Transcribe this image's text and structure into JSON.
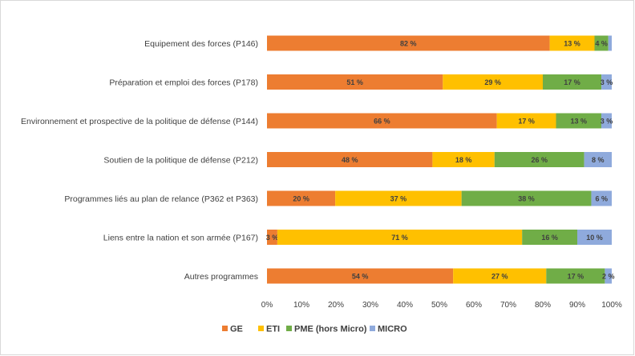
{
  "chart_data": {
    "type": "bar",
    "orientation": "horizontal",
    "stacked": "percent",
    "categories": [
      "Equipement des forces (P146)",
      "Préparation et emploi des forces (P178)",
      "Environnement et prospective de la politique de défense (P144)",
      "Soutien de la politique de défense (P212)",
      "Programmes liés au plan de relance (P362 et P363)",
      "Liens entre la nation et son armée (P167)",
      "Autres programmes"
    ],
    "series": [
      {
        "name": "GE",
        "color": "#ED7D31",
        "values": [
          82,
          51,
          66,
          48,
          20,
          3,
          54
        ],
        "labels": [
          "82 %",
          "51 %",
          "66 %",
          "48 %",
          "20 %",
          "3 %",
          "54 %"
        ]
      },
      {
        "name": "ETI",
        "color": "#FFC000",
        "values": [
          13,
          29,
          17,
          18,
          37,
          71,
          27
        ],
        "labels": [
          "13 %",
          "29 %",
          "17 %",
          "18 %",
          "37 %",
          "71 %",
          "27 %"
        ]
      },
      {
        "name": "PME (hors Micro)",
        "color": "#70AD47",
        "values": [
          4,
          17,
          13,
          26,
          38,
          16,
          17
        ],
        "labels": [
          "4 %",
          "17 %",
          "13 %",
          "26 %",
          "38 %",
          "16 %",
          "17 %"
        ]
      },
      {
        "name": "MICRO",
        "color": "#8FAADC",
        "values": [
          1,
          3,
          3,
          8,
          6,
          10,
          2
        ],
        "labels": [
          "",
          "3 %",
          "3 %",
          "8 %",
          "6 %",
          "10 %",
          "2 %"
        ]
      }
    ],
    "xlim": [
      0,
      100
    ],
    "x_ticks": [
      "0%",
      "10%",
      "20%",
      "30%",
      "40%",
      "50%",
      "60%",
      "70%",
      "80%",
      "90%",
      "100%"
    ],
    "legend_position": "bottom",
    "grid": false,
    "title": "",
    "xlabel": "",
    "ylabel": ""
  }
}
